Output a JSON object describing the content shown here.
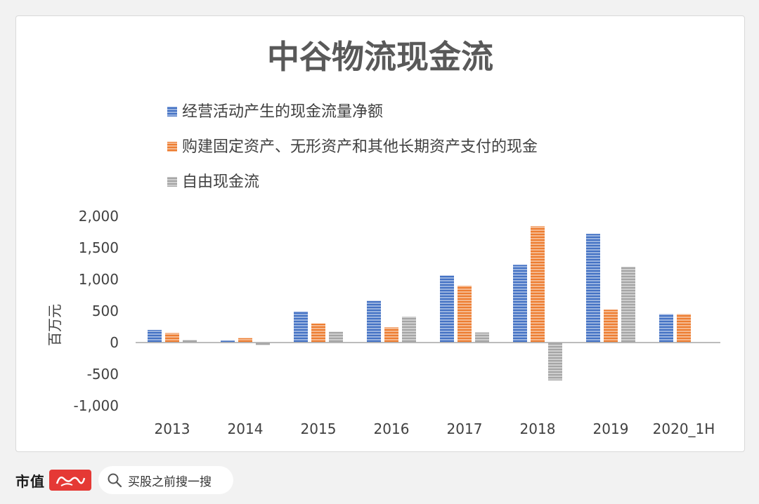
{
  "chart_data": {
    "type": "bar",
    "title": "中谷物流现金流",
    "ylabel": "百万元",
    "xlabel": "",
    "categories": [
      "2013",
      "2014",
      "2015",
      "2016",
      "2017",
      "2018",
      "2019",
      "2020_1H"
    ],
    "series": [
      {
        "name": "经营活动产生的现金流量净额",
        "color": "#4472c4",
        "values": [
          200,
          30,
          490,
          660,
          1060,
          1230,
          1720,
          450
        ]
      },
      {
        "name": "购建固定资产、无形资产和其他长期资产支付的现金",
        "color": "#ed7d31",
        "values": [
          150,
          70,
          300,
          240,
          900,
          1840,
          520,
          450
        ]
      },
      {
        "name": "自由现金流",
        "color": "#a5a5a5",
        "values": [
          40,
          -40,
          170,
          410,
          160,
          -600,
          1200,
          null
        ]
      }
    ],
    "ylim": [
      -1000,
      2000
    ],
    "yticks": [
      2000,
      1500,
      1000,
      500,
      0,
      -500,
      -1000
    ],
    "ytick_labels": [
      "2,000",
      "1,500",
      "1,000",
      "500",
      "0",
      "-500",
      "-1,000"
    ],
    "legend_position": "top-left",
    "grid": false
  },
  "footer": {
    "brand": "市值",
    "search_placeholder": "买股之前搜一搜"
  }
}
